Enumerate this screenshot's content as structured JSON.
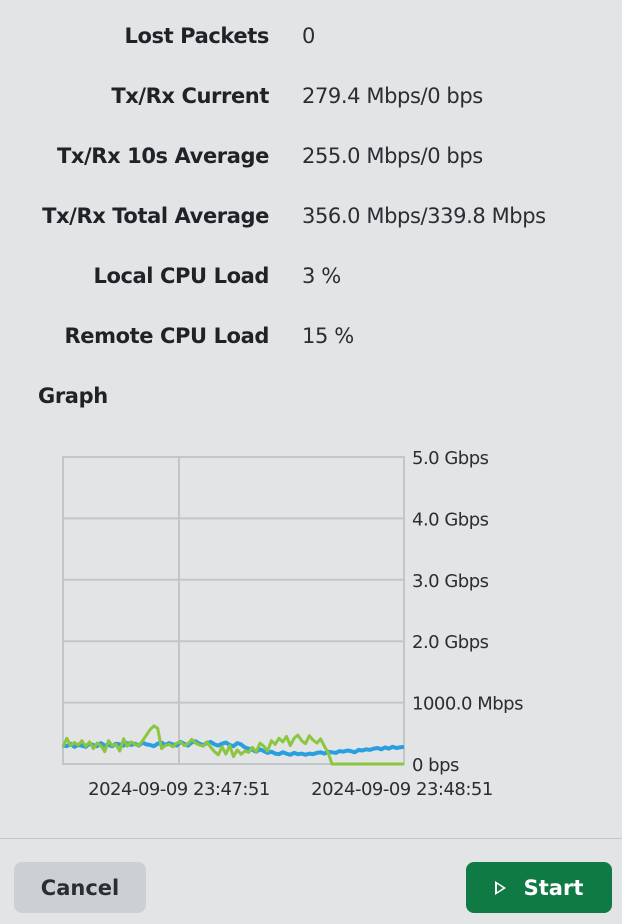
{
  "stats": [
    {
      "label": "Lost Packets",
      "value": "0"
    },
    {
      "label": "Tx/Rx Current",
      "value": "279.4 Mbps/0 bps"
    },
    {
      "label": "Tx/Rx 10s Average",
      "value": "255.0 Mbps/0 bps"
    },
    {
      "label": "Tx/Rx Total Average",
      "value": "356.0 Mbps/339.8 Mbps"
    },
    {
      "label": "Local CPU Load",
      "value": "3 %"
    },
    {
      "label": "Remote CPU Load",
      "value": "15 %"
    }
  ],
  "graph": {
    "title": "Graph"
  },
  "chart_data": {
    "type": "line",
    "yticks": [
      "0 bps",
      "1000.0 Mbps",
      "2.0 Gbps",
      "3.0 Gbps",
      "4.0 Gbps",
      "5.0 Gbps"
    ],
    "ylim_mbps": [
      0,
      5000
    ],
    "xticks": [
      "2024-09-09 23:47:51",
      "2024-09-09 23:48:51"
    ],
    "grid": true,
    "series": [
      {
        "color": "#2a9fe0",
        "values": [
          300,
          290,
          330,
          280,
          310,
          300,
          280,
          330,
          310,
          290,
          340,
          300,
          310,
          290,
          330,
          320,
          300,
          340,
          310,
          330,
          300,
          350,
          320,
          310,
          290,
          330,
          350,
          310,
          340,
          320,
          300,
          360,
          330,
          300,
          350,
          370,
          330,
          310,
          340,
          360,
          320,
          300,
          330,
          350,
          310,
          290,
          340,
          320,
          270,
          250,
          230,
          200,
          240,
          210,
          180,
          200,
          170,
          160,
          190,
          170,
          150,
          180,
          160,
          170,
          150,
          170,
          160,
          180,
          190,
          170,
          200,
          190,
          180,
          210,
          200,
          220,
          210,
          190,
          230,
          220,
          240,
          230,
          250,
          260,
          240,
          270,
          250,
          280,
          260,
          270,
          280
        ]
      },
      {
        "color": "#8cc63f",
        "values": [
          280,
          420,
          300,
          350,
          310,
          380,
          290,
          360,
          250,
          340,
          300,
          200,
          380,
          300,
          320,
          210,
          410,
          290,
          360,
          320,
          300,
          380,
          470,
          560,
          620,
          580,
          250,
          300,
          320,
          280,
          340,
          360,
          300,
          330,
          400,
          340,
          310,
          290,
          360,
          270,
          200,
          150,
          280,
          160,
          300,
          120,
          230,
          160,
          210,
          190,
          270,
          200,
          340,
          290,
          210,
          380,
          320,
          420,
          360,
          450,
          300,
          420,
          470,
          380,
          330,
          460,
          390,
          340,
          410,
          290,
          180,
          0,
          0,
          0,
          0,
          0,
          0,
          0,
          0,
          0,
          0,
          0,
          0,
          0,
          0,
          0,
          0,
          0,
          0,
          0,
          0
        ]
      }
    ]
  },
  "buttons": {
    "cancel": "Cancel",
    "start": "Start"
  },
  "colors": {
    "start_button": "#0f7a43",
    "tx_series": "#2a9fe0",
    "rx_series": "#8cc63f"
  }
}
